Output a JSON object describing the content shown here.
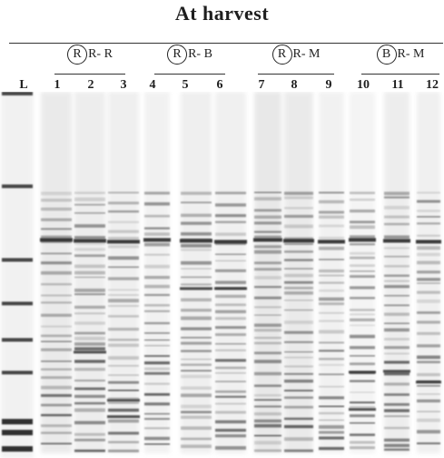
{
  "title": "At harvest",
  "groups": [
    {
      "circled": "R",
      "rest": "R- R"
    },
    {
      "circled": "R",
      "rest": "R- B"
    },
    {
      "circled": "R",
      "rest": "R- M"
    },
    {
      "circled": "B",
      "rest": "R- M"
    }
  ],
  "lanes": [
    "L",
    "1",
    "2",
    "3",
    "4",
    "5",
    "6",
    "7",
    "8",
    "9",
    "10",
    "11",
    "12"
  ],
  "colors": {
    "band": "#1e1e1e",
    "background": "#ffffff"
  }
}
